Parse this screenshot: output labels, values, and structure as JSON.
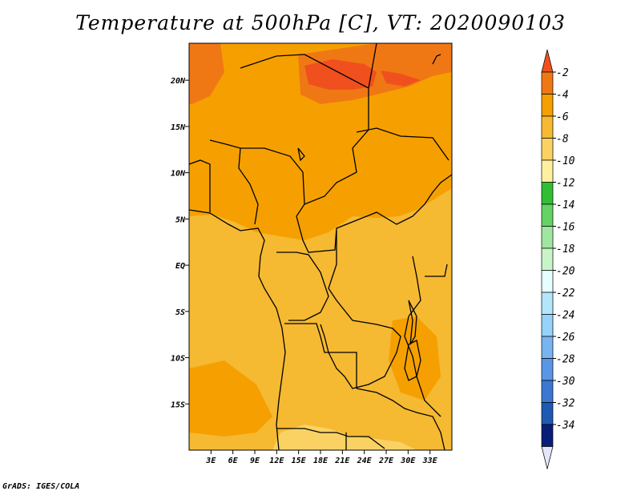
{
  "title": "Temperature at 500hPa [C], VT: 2020090103",
  "footer": "GrADS: IGES/COLA",
  "map": {
    "lon_range": [
      0,
      36
    ],
    "lat_range": [
      -20,
      24
    ],
    "lon_ticks": [
      "3E",
      "6E",
      "9E",
      "12E",
      "15E",
      "18E",
      "21E",
      "24E",
      "27E",
      "30E",
      "33E"
    ],
    "lat_ticks": [
      "20N",
      "15N",
      "10N",
      "5N",
      "EQ",
      "5S",
      "10S",
      "15S"
    ]
  },
  "colorbar": {
    "levels": [
      "-2",
      "-4",
      "-6",
      "-8",
      "-10",
      "-12",
      "-14",
      "-16",
      "-18",
      "-20",
      "-22",
      "-24",
      "-26",
      "-28",
      "-30",
      "-32",
      "-34"
    ],
    "colors": {
      "above": "#f0501e",
      "bins": [
        "#f07814",
        "#f5a000",
        "#f5b932",
        "#fad264",
        "#fff0a0",
        "#32be32",
        "#64d264",
        "#a0e6a0",
        "#c8f5c8",
        "#e6ffff",
        "#b4e6fa",
        "#96d2fa",
        "#78b4f0",
        "#5a96e6",
        "#3c78d2",
        "#1e5ab4"
      ],
      "below": "#0a1e78",
      "below_tip": "#e6e6fa"
    }
  },
  "field_colors": {
    "c4to2": "#f07814",
    "c6to4": "#f5a000",
    "c8to6": "#f5b932",
    "c10to8": "#fad264",
    "c2up": "#f0501e"
  }
}
